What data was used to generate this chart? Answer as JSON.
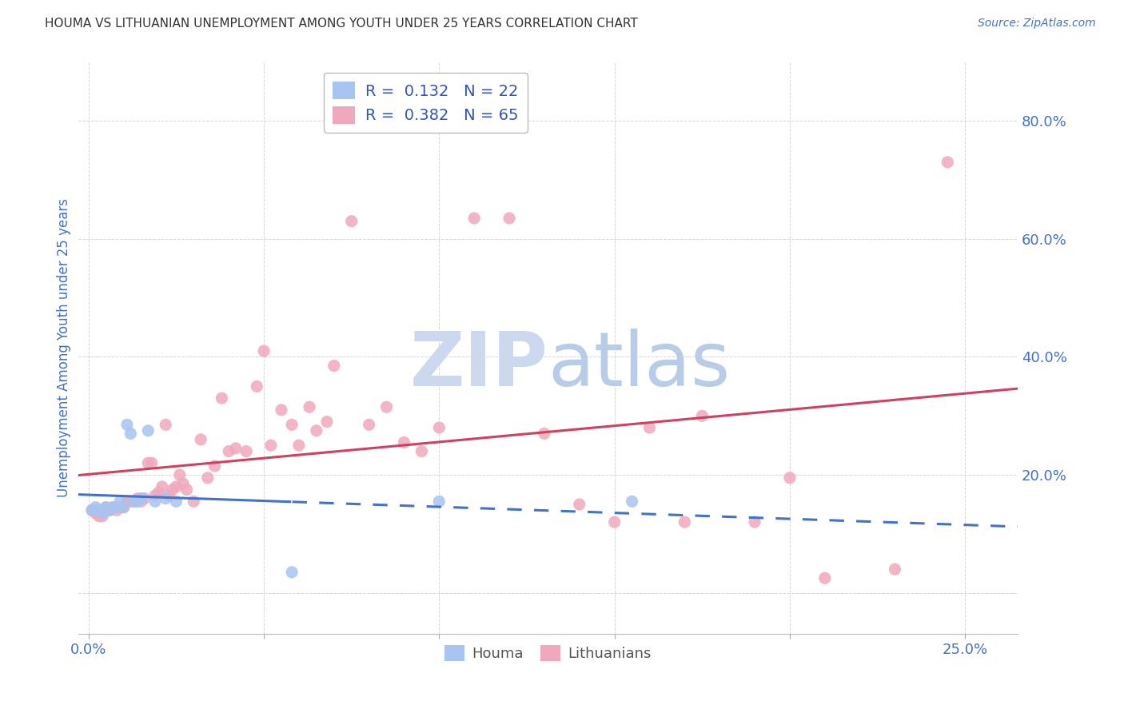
{
  "title": "HOUMA VS LITHUANIAN UNEMPLOYMENT AMONG YOUTH UNDER 25 YEARS CORRELATION CHART",
  "source": "Source: ZipAtlas.com",
  "ylabel": "Unemployment Among Youth under 25 years",
  "x_ticks": [
    0.0,
    0.05,
    0.1,
    0.15,
    0.2,
    0.25
  ],
  "x_tick_labels": [
    "0.0%",
    "",
    "",
    "",
    "",
    "25.0%"
  ],
  "y_ticks": [
    0.0,
    0.2,
    0.4,
    0.6,
    0.8
  ],
  "y_tick_labels": [
    "",
    "20.0%",
    "40.0%",
    "60.0%",
    "80.0%"
  ],
  "xlim": [
    -0.003,
    0.265
  ],
  "ylim": [
    -0.07,
    0.9
  ],
  "houma_scatter_color": "#a8c4f0",
  "lithuanian_scatter_color": "#f0a8bc",
  "houma_line_color": "#4472c4",
  "lithuanian_line_color": "#d04060",
  "background_color": "#ffffff",
  "grid_color": "#cccccc",
  "title_color": "#333333",
  "tick_label_color": "#4472c4",
  "watermark_zip_color": "#ccd8ee",
  "watermark_atlas_color": "#b8cce8",
  "houma_R": "0.132",
  "houma_N": "22",
  "lith_R": "0.382",
  "lith_N": "65",
  "houma_x": [
    0.001,
    0.002,
    0.003,
    0.004,
    0.005,
    0.006,
    0.007,
    0.008,
    0.009,
    0.01,
    0.011,
    0.012,
    0.013,
    0.014,
    0.015,
    0.017,
    0.019,
    0.022,
    0.025,
    0.058,
    0.1,
    0.155
  ],
  "houma_y": [
    0.14,
    0.145,
    0.14,
    0.135,
    0.145,
    0.14,
    0.145,
    0.145,
    0.155,
    0.145,
    0.285,
    0.27,
    0.155,
    0.155,
    0.16,
    0.275,
    0.155,
    0.16,
    0.155,
    0.035,
    0.155,
    0.155
  ],
  "lith_x": [
    0.001,
    0.002,
    0.003,
    0.004,
    0.005,
    0.006,
    0.007,
    0.008,
    0.009,
    0.01,
    0.011,
    0.012,
    0.013,
    0.014,
    0.015,
    0.016,
    0.017,
    0.018,
    0.019,
    0.02,
    0.021,
    0.022,
    0.023,
    0.024,
    0.025,
    0.026,
    0.027,
    0.028,
    0.03,
    0.032,
    0.034,
    0.036,
    0.038,
    0.04,
    0.042,
    0.045,
    0.048,
    0.05,
    0.052,
    0.055,
    0.058,
    0.06,
    0.063,
    0.065,
    0.068,
    0.07,
    0.075,
    0.08,
    0.085,
    0.09,
    0.095,
    0.1,
    0.11,
    0.12,
    0.13,
    0.14,
    0.15,
    0.16,
    0.17,
    0.175,
    0.19,
    0.2,
    0.21,
    0.23,
    0.245
  ],
  "lith_y": [
    0.14,
    0.135,
    0.13,
    0.13,
    0.145,
    0.14,
    0.145,
    0.14,
    0.145,
    0.145,
    0.155,
    0.155,
    0.155,
    0.16,
    0.155,
    0.16,
    0.22,
    0.22,
    0.165,
    0.17,
    0.18,
    0.285,
    0.165,
    0.175,
    0.18,
    0.2,
    0.185,
    0.175,
    0.155,
    0.26,
    0.195,
    0.215,
    0.33,
    0.24,
    0.245,
    0.24,
    0.35,
    0.41,
    0.25,
    0.31,
    0.285,
    0.25,
    0.315,
    0.275,
    0.29,
    0.385,
    0.63,
    0.285,
    0.315,
    0.255,
    0.24,
    0.28,
    0.635,
    0.635,
    0.27,
    0.15,
    0.12,
    0.28,
    0.12,
    0.3,
    0.12,
    0.195,
    0.025,
    0.04,
    0.73
  ]
}
